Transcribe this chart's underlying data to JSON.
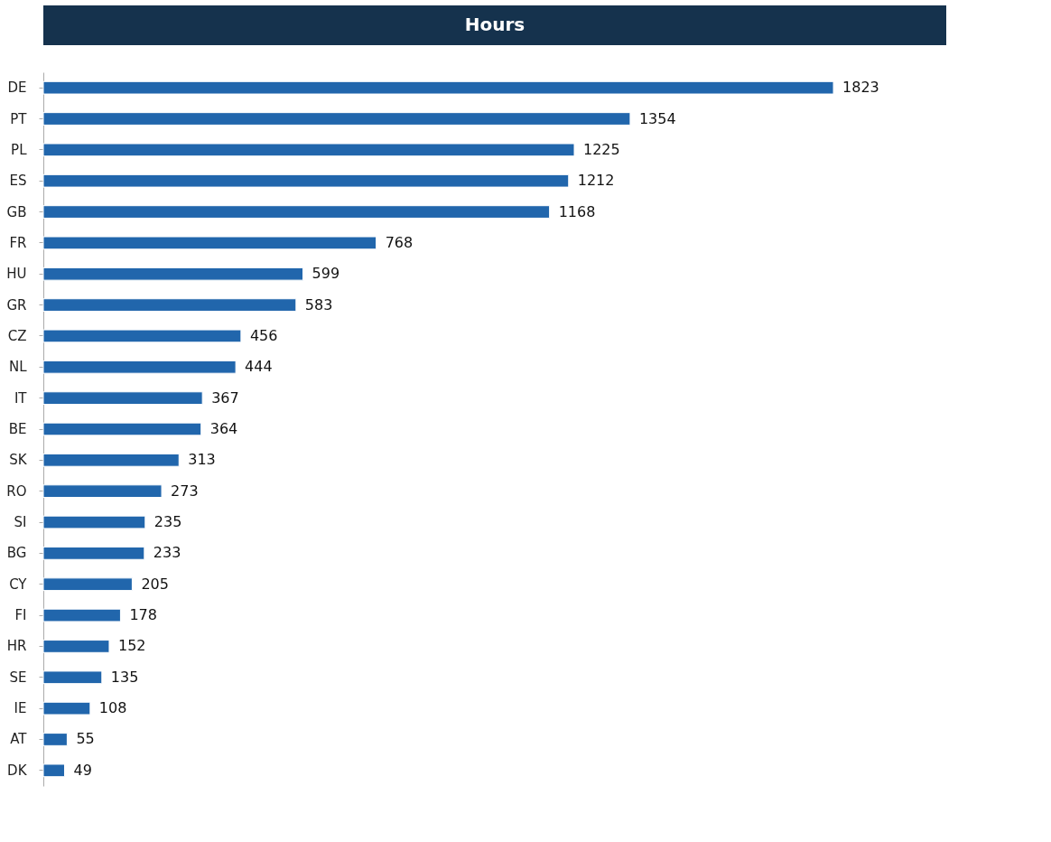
{
  "chart_data": {
    "type": "bar",
    "orientation": "horizontal",
    "title": "Hours",
    "data_labels": true,
    "grid": false,
    "categories": [
      "DE",
      "PT",
      "PL",
      "ES",
      "GB",
      "FR",
      "HU",
      "GR",
      "CZ",
      "NL",
      "IT",
      "BE",
      "SK",
      "RO",
      "SI",
      "BG",
      "CY",
      "FI",
      "HR",
      "SE",
      "IE",
      "AT",
      "DK"
    ],
    "values": [
      1823,
      1354,
      1225,
      1212,
      1168,
      768,
      599,
      583,
      456,
      444,
      367,
      364,
      313,
      273,
      235,
      233,
      205,
      178,
      152,
      135,
      108,
      55,
      49
    ],
    "color": "#2166ac"
  }
}
